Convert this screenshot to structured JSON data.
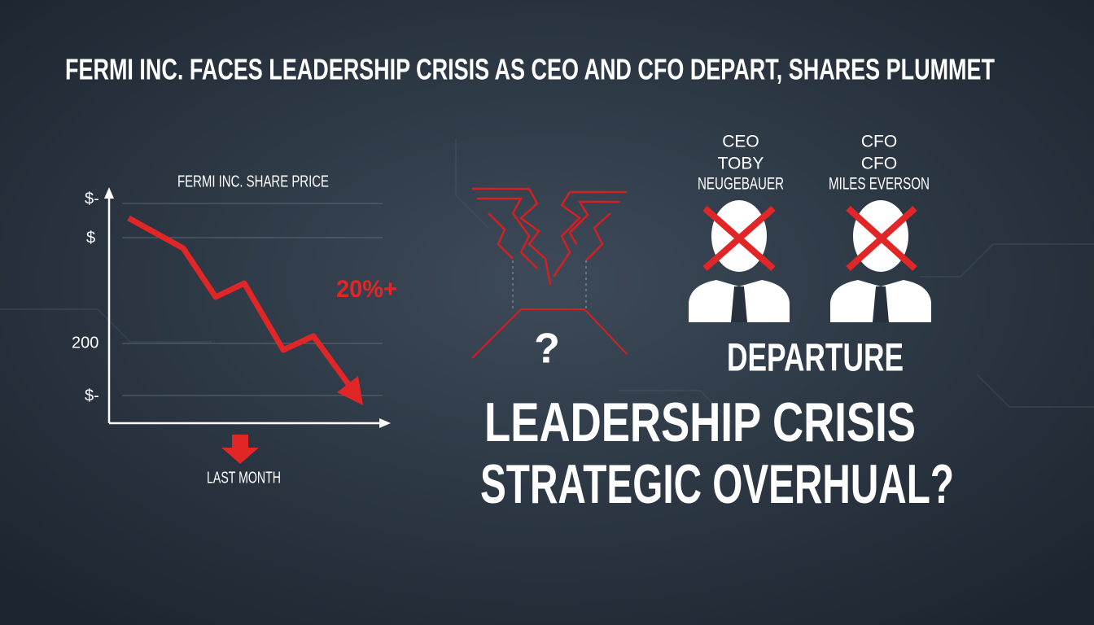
{
  "header": {
    "title": "FERMI INC. FACES LEADERSHIP CRISIS AS CEO AND CFO DEPART, SHARES PLUMMET"
  },
  "share_chart": {
    "title": "FERMI INC. SHARE PRICE",
    "y_labels": [
      "$-",
      "$",
      "200",
      "$-"
    ],
    "change_label": "20%+",
    "period_label": "LAST MONTH"
  },
  "question_mark": "?",
  "executives": [
    {
      "role": "CEO",
      "name_lines": [
        "TOBY",
        "NEUGEBAUER"
      ]
    },
    {
      "role": "CFO",
      "name_lines": [
        "CFO",
        "MILES EVERSON"
      ]
    }
  ],
  "status": "DEPARTURE",
  "headline": {
    "lines": [
      "LEADERSHIP CRISIS",
      "STRATEGIC OVERHUAL?"
    ]
  }
}
